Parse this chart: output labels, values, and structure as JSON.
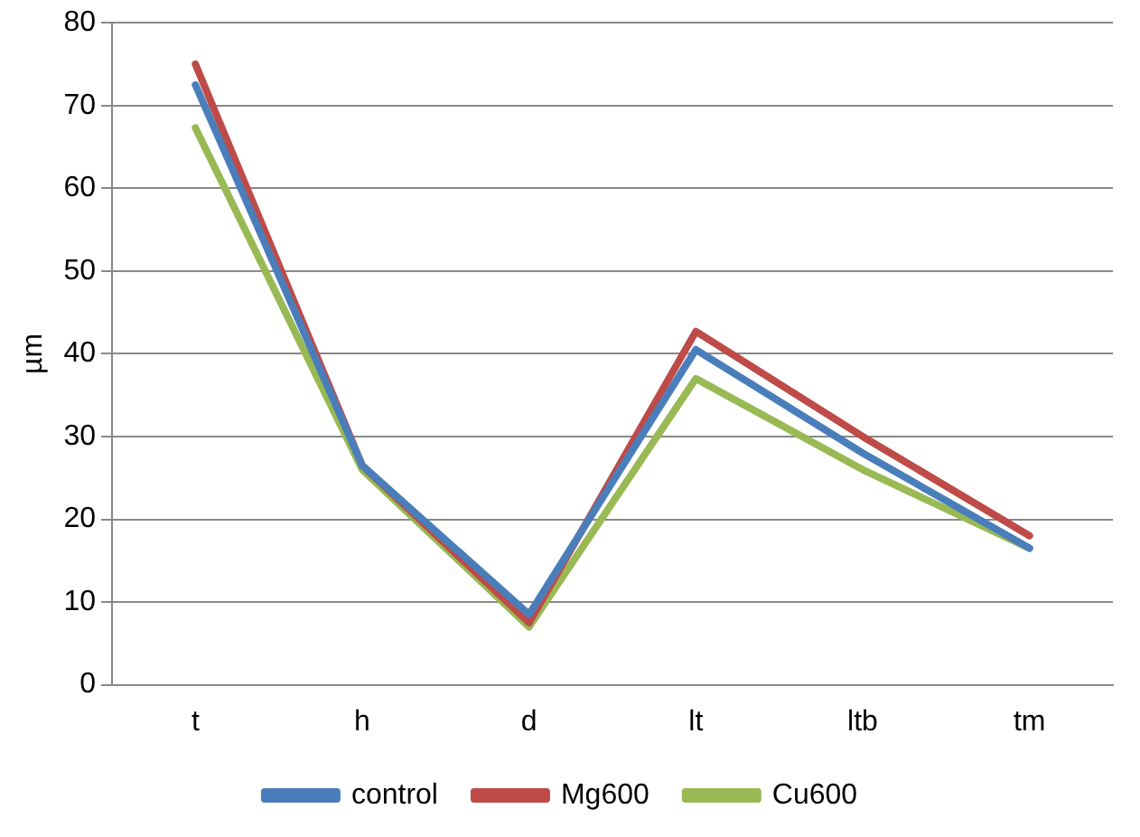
{
  "chart_data": {
    "type": "line",
    "ylabel": "µm",
    "categories": [
      "t",
      "h",
      "d",
      "lt",
      "ltb",
      "tm"
    ],
    "series": [
      {
        "name": "control",
        "color": "#4a7ebb",
        "values": [
          72.5,
          26.5,
          8.5,
          40.5,
          28,
          16.5
        ]
      },
      {
        "name": "Mg600",
        "color": "#be4b48",
        "values": [
          75,
          26.5,
          7.5,
          42.7,
          30,
          18
        ]
      },
      {
        "name": "Cu600",
        "color": "#98b954",
        "values": [
          67.3,
          26,
          7,
          37,
          26,
          16.5
        ]
      }
    ],
    "ylim": [
      0,
      80
    ],
    "yticks": [
      0,
      10,
      20,
      30,
      40,
      50,
      60,
      70,
      80
    ],
    "grid": "y",
    "legend": "bottom",
    "marker": "none",
    "line_style": "solid"
  }
}
